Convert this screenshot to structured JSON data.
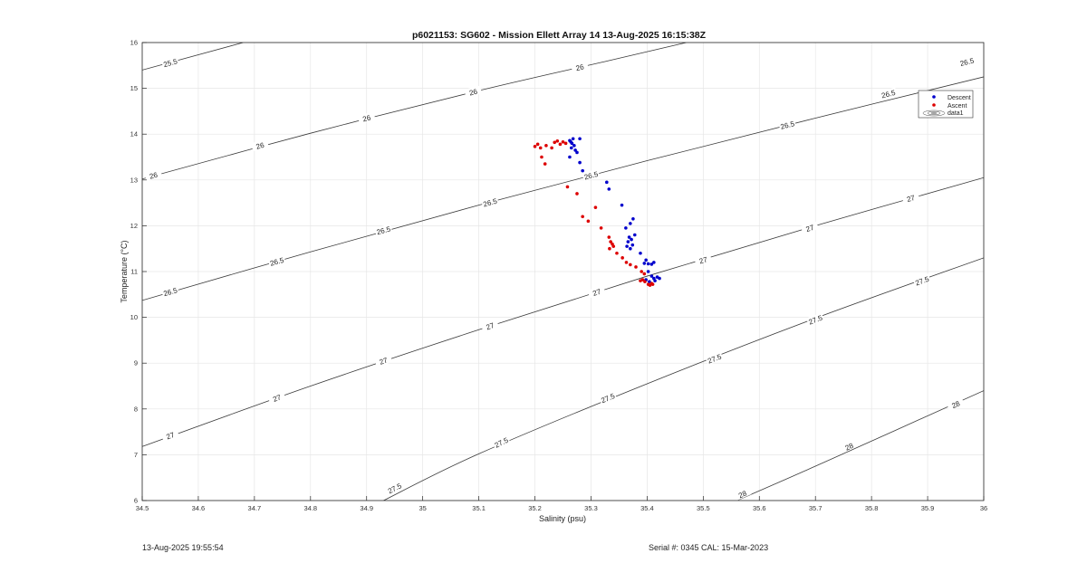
{
  "chart_data": {
    "type": "scatter",
    "title": "p6021153: SG602 - Mission Ellett Array 14 13-Aug-2025 16:15:38Z",
    "xlabel": "Salinity (psu)",
    "ylabel": "Temperature (°C)",
    "xlim": [
      34.5,
      36
    ],
    "ylim": [
      6,
      16
    ],
    "xticks": [
      "34.5",
      "34.6",
      "34.7",
      "34.8",
      "34.9",
      "35",
      "35.1",
      "35.2",
      "35.3",
      "35.4",
      "35.5",
      "35.6",
      "35.7",
      "35.8",
      "35.9",
      "36"
    ],
    "yticks": [
      "6",
      "7",
      "8",
      "9",
      "10",
      "11",
      "12",
      "13",
      "14",
      "15",
      "16"
    ],
    "grid": true,
    "legend_position": "top-right",
    "legend": [
      "Descent",
      "Ascent",
      "data1"
    ],
    "series": [
      {
        "name": "Descent",
        "color": "#0000cc",
        "points": [
          [
            35.262,
            13.86
          ],
          [
            35.264,
            13.83
          ],
          [
            35.266,
            13.8
          ],
          [
            35.268,
            13.9
          ],
          [
            35.27,
            13.75
          ],
          [
            35.265,
            13.7
          ],
          [
            35.272,
            13.65
          ],
          [
            35.275,
            13.6
          ],
          [
            35.262,
            13.5
          ],
          [
            35.28,
            13.9
          ],
          [
            35.28,
            13.38
          ],
          [
            35.285,
            13.2
          ],
          [
            35.328,
            12.95
          ],
          [
            35.332,
            12.8
          ],
          [
            35.355,
            12.45
          ],
          [
            35.375,
            12.15
          ],
          [
            35.37,
            12.05
          ],
          [
            35.362,
            11.95
          ],
          [
            35.378,
            11.8
          ],
          [
            35.368,
            11.75
          ],
          [
            35.372,
            11.7
          ],
          [
            35.366,
            11.65
          ],
          [
            35.374,
            11.58
          ],
          [
            35.364,
            11.55
          ],
          [
            35.37,
            11.5
          ],
          [
            35.388,
            11.4
          ],
          [
            35.398,
            11.25
          ],
          [
            35.395,
            11.18
          ],
          [
            35.402,
            11.17
          ],
          [
            35.408,
            11.16
          ],
          [
            35.412,
            11.2
          ],
          [
            35.402,
            11.0
          ],
          [
            35.408,
            10.9
          ],
          [
            35.412,
            10.85
          ],
          [
            35.418,
            10.88
          ],
          [
            35.422,
            10.85
          ],
          [
            35.414,
            10.8
          ],
          [
            35.404,
            10.78
          ],
          [
            35.398,
            10.82
          ]
        ]
      },
      {
        "name": "Ascent",
        "color": "#dd0000",
        "points": [
          [
            35.2,
            13.73
          ],
          [
            35.205,
            13.78
          ],
          [
            35.21,
            13.7
          ],
          [
            35.22,
            13.75
          ],
          [
            35.23,
            13.7
          ],
          [
            35.235,
            13.82
          ],
          [
            35.24,
            13.85
          ],
          [
            35.245,
            13.78
          ],
          [
            35.25,
            13.83
          ],
          [
            35.255,
            13.8
          ],
          [
            35.212,
            13.5
          ],
          [
            35.218,
            13.35
          ],
          [
            35.258,
            12.85
          ],
          [
            35.275,
            12.7
          ],
          [
            35.285,
            12.2
          ],
          [
            35.295,
            12.1
          ],
          [
            35.308,
            12.4
          ],
          [
            35.318,
            11.95
          ],
          [
            35.332,
            11.75
          ],
          [
            35.335,
            11.65
          ],
          [
            35.338,
            11.6
          ],
          [
            35.34,
            11.55
          ],
          [
            35.333,
            11.5
          ],
          [
            35.346,
            11.4
          ],
          [
            35.356,
            11.3
          ],
          [
            35.363,
            11.2
          ],
          [
            35.37,
            11.15
          ],
          [
            35.38,
            11.1
          ],
          [
            35.39,
            11.0
          ],
          [
            35.395,
            10.95
          ],
          [
            35.392,
            10.82
          ],
          [
            35.388,
            10.8
          ],
          [
            35.396,
            10.78
          ],
          [
            35.402,
            10.72
          ],
          [
            35.405,
            10.7
          ],
          [
            35.408,
            10.74
          ],
          [
            35.41,
            10.72
          ]
        ]
      }
    ],
    "contours": [
      {
        "level": 25.5,
        "label": "25.5",
        "points": [
          [
            34.5,
            15.4
          ],
          [
            34.68,
            16.0
          ]
        ]
      },
      {
        "level": 26,
        "label": "26",
        "points": [
          [
            34.5,
            13.02
          ],
          [
            34.8,
            14.02
          ],
          [
            35.1,
            14.95
          ],
          [
            35.33,
            15.6
          ],
          [
            35.47,
            16.0
          ]
        ]
      },
      {
        "level": 26.5,
        "label": "26.5",
        "points": [
          [
            34.5,
            10.37
          ],
          [
            34.8,
            11.43
          ],
          [
            35.1,
            12.45
          ],
          [
            35.4,
            13.42
          ],
          [
            35.7,
            14.35
          ],
          [
            36.0,
            15.25
          ]
        ]
      },
      {
        "level": 27,
        "label": "27",
        "points": [
          [
            34.5,
            7.18
          ],
          [
            34.8,
            8.5
          ],
          [
            35.1,
            9.73
          ],
          [
            35.4,
            10.9
          ],
          [
            35.7,
            12.0
          ],
          [
            36.0,
            13.05
          ]
        ]
      },
      {
        "level": 27.5,
        "label": "27.5",
        "points": [
          [
            34.93,
            6.0
          ],
          [
            35.1,
            7.02
          ],
          [
            35.4,
            8.55
          ],
          [
            35.7,
            9.98
          ],
          [
            36.0,
            11.3
          ]
        ]
      },
      {
        "level": 28,
        "label": "28",
        "points": [
          [
            35.56,
            6.0
          ],
          [
            35.7,
            6.75
          ],
          [
            36.0,
            8.4
          ]
        ]
      }
    ],
    "contour_labels": [
      {
        "text": "25.5",
        "s": 34.55,
        "t": 15.56
      },
      {
        "text": "26",
        "s": 34.52,
        "t": 13.1
      },
      {
        "text": "26",
        "s": 34.71,
        "t": 13.75
      },
      {
        "text": "26",
        "s": 34.9,
        "t": 14.35
      },
      {
        "text": "26",
        "s": 35.09,
        "t": 14.92
      },
      {
        "text": "26",
        "s": 35.28,
        "t": 15.46
      },
      {
        "text": "26.5",
        "s": 34.55,
        "t": 10.56
      },
      {
        "text": "26.5",
        "s": 34.74,
        "t": 11.22
      },
      {
        "text": "26.5",
        "s": 34.93,
        "t": 11.9
      },
      {
        "text": "26.5",
        "s": 35.12,
        "t": 12.51
      },
      {
        "text": "26.5",
        "s": 35.3,
        "t": 13.1
      },
      {
        "text": "26.5",
        "s": 35.65,
        "t": 14.2
      },
      {
        "text": "26.5",
        "s": 35.83,
        "t": 14.88
      },
      {
        "text": "26.5",
        "s": 35.97,
        "t": 15.58
      },
      {
        "text": "27",
        "s": 34.55,
        "t": 7.42
      },
      {
        "text": "27",
        "s": 34.74,
        "t": 8.24
      },
      {
        "text": "27",
        "s": 34.93,
        "t": 9.05
      },
      {
        "text": "27",
        "s": 35.12,
        "t": 9.81
      },
      {
        "text": "27",
        "s": 35.31,
        "t": 10.55
      },
      {
        "text": "27",
        "s": 35.5,
        "t": 11.25
      },
      {
        "text": "27",
        "s": 35.69,
        "t": 11.95
      },
      {
        "text": "27",
        "s": 35.87,
        "t": 12.6
      },
      {
        "text": "27.5",
        "s": 34.95,
        "t": 6.27
      },
      {
        "text": "27.5",
        "s": 35.14,
        "t": 7.27
      },
      {
        "text": "27.5",
        "s": 35.33,
        "t": 8.24
      },
      {
        "text": "27.5",
        "s": 35.52,
        "t": 9.1
      },
      {
        "text": "27.5",
        "s": 35.7,
        "t": 9.95
      },
      {
        "text": "27.5",
        "s": 35.89,
        "t": 10.8
      },
      {
        "text": "28",
        "s": 35.57,
        "t": 6.14
      },
      {
        "text": "28",
        "s": 35.76,
        "t": 7.18
      },
      {
        "text": "28",
        "s": 35.95,
        "t": 8.1
      }
    ]
  },
  "footer": {
    "left": "13-Aug-2025 19:55:54",
    "right": "Serial #: 0345  CAL: 15-Mar-2023"
  }
}
